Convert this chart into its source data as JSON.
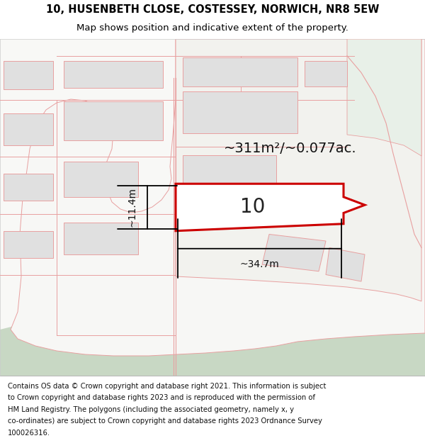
{
  "title_line1": "10, HUSENBETH CLOSE, COSTESSEY, NORWICH, NR8 5EW",
  "title_line2": "Map shows position and indicative extent of the property.",
  "area_label": "~311m²/~0.077ac.",
  "plot_label": "10",
  "dim_width": "~34.7m",
  "dim_height": "~11.4m",
  "plot_fill": "#ffffff",
  "plot_edge": "#cc0000",
  "bldg_fill": "#e0e0e0",
  "bldg_edge": "#e8a0a0",
  "parcel_fill": "#f7f7f5",
  "parcel_edge": "#e8a0a0",
  "green_fill": "#c8d8c4",
  "green_edge": "#c8d8c4",
  "map_bg": "#f8f8f6",
  "title_fontsize": 10.5,
  "subtitle_fontsize": 9.5,
  "footer_fontsize": 7.2,
  "footer_lines": [
    "Contains OS data © Crown copyright and database right 2021. This information is subject",
    "to Crown copyright and database rights 2023 and is reproduced with the permission of",
    "HM Land Registry. The polygons (including the associated geometry, namely x, y",
    "co-ordinates) are subject to Crown copyright and database rights 2023 Ordnance Survey",
    "100026316."
  ]
}
